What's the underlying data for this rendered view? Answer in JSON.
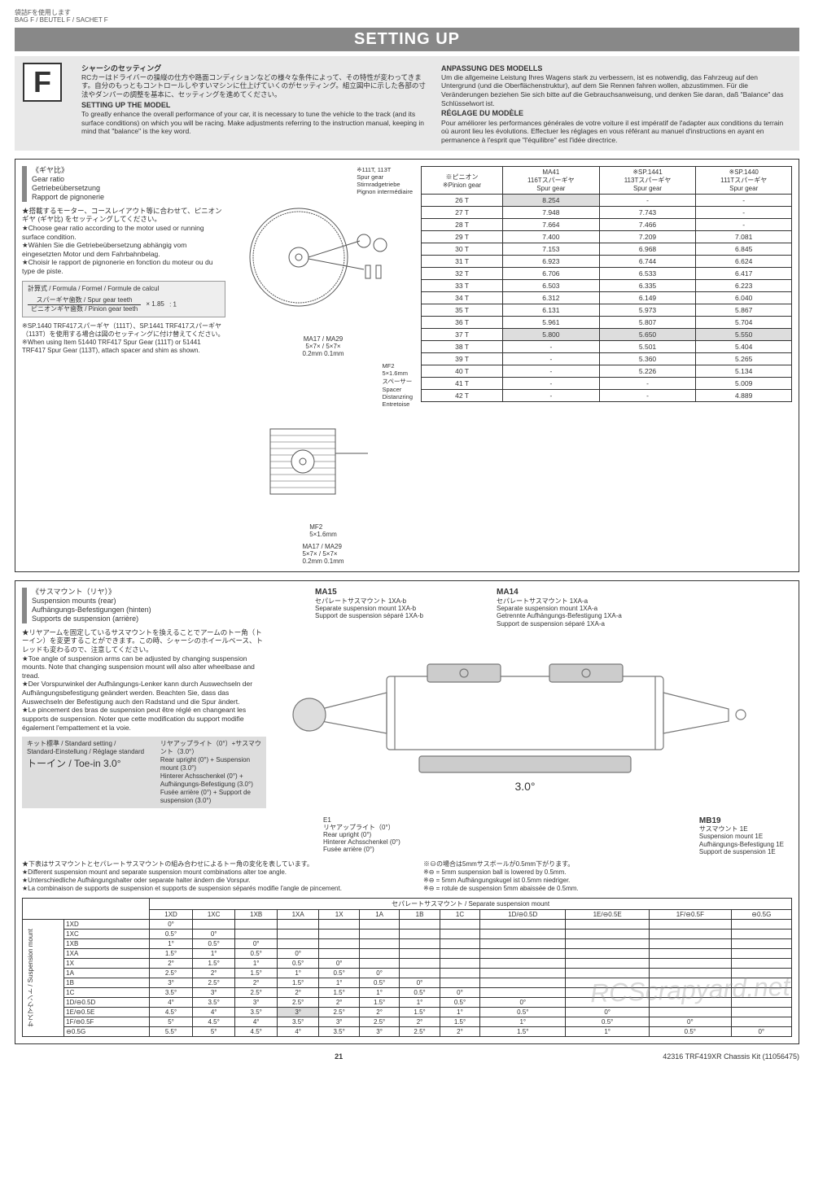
{
  "page": {
    "bag_jp": "袋詰Fを使用します",
    "bag_en": "BAG F / BEUTEL F / SACHET F",
    "title": "SETTING UP",
    "page_number": "21",
    "footer_right": "42316 TRF419XR Chassis Kit (11056475)",
    "watermark": "RCScrapyard.net"
  },
  "intro": {
    "f_label": "F",
    "jp_head": "シャーシのセッティング",
    "jp_body": "RCカーはドライバーの操縦の仕方や路面コンディションなどの様々な条件によって、その特性が変わってきます。自分のもっともコントロールしやすいマシンに仕上げていくのがセッティング。組立図中に示した各部の寸法やダンパーの調整を基本に、セッティングを進めてください。",
    "en_head": "SETTING UP THE MODEL",
    "en_body": "To greatly enhance the overall performance of your car, it is necessary to tune the vehicle to the track (and its surface conditions) on which you will be racing. Make adjustments referring to the instruction manual, keeping in mind that \"balance\" is the key word.",
    "de_head": "ANPASSUNG DES MODELLS",
    "de_body": "Um die allgemeine Leistung Ihres Wagens stark zu verbessern, ist es notwendig, das Fahrzeug auf den Untergrund (und die Oberflächenstruktur), auf dem Sie Rennen fahren wollen, abzustimmen. Für die Veränderungen beziehen Sie sich bitte auf die Gebrauchsanweisung, und denken Sie daran, daß \"Balance\" das Schlüsselwort ist.",
    "fr_head": "RÉGLAGE DU MODÈLE",
    "fr_body": "Pour améliorer les performances générales de votre voiture il est impératif de l'adapter aux conditions du terrain où auront lieu les évolutions. Effectuer les réglages en vous référant au manuel d'instructions en ayant en permanence à l'esprit que \"l'équilibre\" est l'idée directrice."
  },
  "gear": {
    "head_jp": "《ギヤ比》",
    "head_en": "Gear ratio",
    "head_de": "Getriebeübersetzung",
    "head_fr": "Rapport de pignonerie",
    "text_jp": "★搭載するモーター、コースレイアウト等に合わせて、ピニオンギヤ (ギヤ比) をセッティングしてください。",
    "text_en": "★Choose gear ratio according to the motor used or running surface condition.",
    "text_de": "★Wählen Sie die Getriebeübersetzung abhängig vom eingesetzten Motor und dem Fahrbahnbelag.",
    "text_fr": "★Choisir le rapport de pignonerie en fonction du moteur ou du type de piste.",
    "formula_head": "計算式 / Formula / Formel / Formule de calcul",
    "frac_num": "スパーギヤ歯数 / Spur gear teeth",
    "frac_den": "ピニオンギヤ歯数 / Pinion gear teeth",
    "frac_mult": "× 1.85",
    "frac_ratio": ": 1",
    "sp_note": "※SP.1440 TRF417スパーギヤ（111T）、SP.1441 TRF417スパーギヤ（113T）を使用する場合は図のセッティングに付け替えてください。\n※When using Item 51440 TRF417 Spur Gear (111T) or 51441 TRF417 Spur Gear (113T), attach spacer and shim as shown.",
    "label_111t": "※111T, 113T\nSpur gear\nStirnradgetriebe\nPignon intermédiaire",
    "label_ma17": "MA17 / MA29\n5×7× / 5×7×\n0.2mm   0.1mm",
    "label_mf2": "MF2\n5×1.6mm\nスペーサー\nSpacer\nDistanzring\nEntretoise",
    "label_mf2b": "MF2\n5×1.6mm",
    "table": {
      "h1": "※ピニオン\n※Pinion gear",
      "h2": "MA41\n116Tスパーギヤ\nSpur gear",
      "h3": "※SP.1441\n113Tスパーギヤ\nSpur gear",
      "h4": "※SP.1440\n111Tスパーギヤ\nSpur gear",
      "rows": [
        [
          "26 T",
          "8.254",
          "-",
          "-"
        ],
        [
          "27 T",
          "7.948",
          "7.743",
          "-"
        ],
        [
          "28 T",
          "7.664",
          "7.466",
          "-"
        ],
        [
          "29 T",
          "7.400",
          "7.209",
          "7.081"
        ],
        [
          "30 T",
          "7.153",
          "6.968",
          "6.845"
        ],
        [
          "31 T",
          "6.923",
          "6.744",
          "6.624"
        ],
        [
          "32 T",
          "6.706",
          "6.533",
          "6.417"
        ],
        [
          "33 T",
          "6.503",
          "6.335",
          "6.223"
        ],
        [
          "34 T",
          "6.312",
          "6.149",
          "6.040"
        ],
        [
          "35 T",
          "6.131",
          "5.973",
          "5.867"
        ],
        [
          "36 T",
          "5.961",
          "5.807",
          "5.704"
        ],
        [
          "37 T",
          "5.800",
          "5.650",
          "5.550"
        ],
        [
          "38 T",
          "-",
          "5.501",
          "5.404"
        ],
        [
          "39 T",
          "-",
          "5.360",
          "5.265"
        ],
        [
          "40 T",
          "-",
          "5.226",
          "5.134"
        ],
        [
          "41 T",
          "-",
          "-",
          "5.009"
        ],
        [
          "42 T",
          "-",
          "-",
          "4.889"
        ]
      ],
      "shaded": [
        "8.254",
        "5.800",
        "5.650",
        "5.550"
      ]
    }
  },
  "susp": {
    "head_jp": "《サスマウント（リヤ）》",
    "head_en": "Suspension mounts (rear)",
    "head_de": "Aufhängungs-Befestigungen (hinten)",
    "head_fr": "Supports de suspension (arrière)",
    "text_jp": "★リヤアームを固定しているサスマウントを換えることでアームのトー角（トーイン）を変更することができます。この時、シャーシのホイールベース、トレッドも変わるので、注意してください。",
    "text_en": "★Toe angle of suspension arms can be adjusted by changing suspension mounts. Note that changing suspension mount will also alter wheelbase and tread.",
    "text_de": "★Der Vorspurwinkel der Aufhängungs-Lenker kann durch Auswechseln der Aufhängungsbefestigung geändert werden. Beachten Sie, dass das Auswechseln der Befestigung auch den Radstand und die Spur ändert.",
    "text_fr": "★Le pincement des bras de suspension peut être réglé en changeant les supports de suspension. Noter que cette modification du support modifie également l'empattement et la voie.",
    "std_l1": "キット標準 / Standard setting / Standard-Einstellung / Réglage standard",
    "std_l2": "トーイン / Toe-in   3.0°",
    "std_r": "リヤアップライト（0°）+サスマウント（3.0°）\nRear upright (0°) + Suspension mount (3.0°)\nHinterer Achsschenkel (0°) + Aufhängungs-Befestigung (3.0°)\nFusée arrière (0°) + Support de suspension (3.0°)",
    "ma15": {
      "big": "MA15",
      "lines": "セパレートサスマウント 1XA-b\nSeparate suspension mount 1XA-b\nSupport de suspension séparé 1XA-b"
    },
    "ma14": {
      "big": "MA14",
      "lines": "セパレートサスマウント 1XA-a\nSeparate suspension mount 1XA-a\nGetrennte Aufhängungs-Befestigung 1XA-a\nSupport de suspension séparé 1XA-a"
    },
    "e1": "E1\nリヤアップライト（0°）\nRear upright (0°)\nHinterer Achsschenkel (0°)\nFusée arrière (0°)",
    "mb19": {
      "big": "MB19",
      "lines": "サスマウント 1E\nSuspension mount 1E\nAufhängungs-Befestigung 1E\nSupport de suspension 1E"
    },
    "angle": "3.0°",
    "note_jp": "★下表はサスマウントとセパレートサスマウントの組み合わせによるトー角の変化を表しています。",
    "note_en": "★Different suspension mount and separate suspension mount combinations alter toe angle.",
    "note_de": "★Unterschiedliche Aufhängungshalter oder separate halter ändern die Vorspur.",
    "note_fr": "★La combinaison de supports de suspension et supports de suspension séparés modifie l'angle de pincement.",
    "note2_jp": "※⊖の場合は5mmサスボールが0.5mm下がります。\n※⊖ = 5mm suspension ball is lowered by 0.5mm.\n※⊖ = 5mm Aufhängungskugel ist 0.5mm niedriger.\n※⊖ = rotule de suspension 5mm abaissée de 0.5mm."
  },
  "sep": {
    "title": "セパレートサスマウント / Separate suspension mount",
    "side": "サスマウント / Suspension mount",
    "cols": [
      "1XD",
      "1XC",
      "1XB",
      "1XA",
      "1X",
      "1A",
      "1B",
      "1C",
      "1D/⊖0.5D",
      "1E/⊖0.5E",
      "1F/⊖0.5F",
      "⊖0.5G"
    ],
    "rows": [
      {
        "h": "1XD",
        "c": [
          "0°",
          "",
          "",
          "",
          "",
          "",
          "",
          "",
          "",
          "",
          "",
          ""
        ]
      },
      {
        "h": "1XC",
        "c": [
          "0.5°",
          "0°",
          "",
          "",
          "",
          "",
          "",
          "",
          "",
          "",
          "",
          ""
        ]
      },
      {
        "h": "1XB",
        "c": [
          "1°",
          "0.5°",
          "0°",
          "",
          "",
          "",
          "",
          "",
          "",
          "",
          "",
          ""
        ]
      },
      {
        "h": "1XA",
        "c": [
          "1.5°",
          "1°",
          "0.5°",
          "0°",
          "",
          "",
          "",
          "",
          "",
          "",
          "",
          ""
        ]
      },
      {
        "h": "1X",
        "c": [
          "2°",
          "1.5°",
          "1°",
          "0.5°",
          "0°",
          "",
          "",
          "",
          "",
          "",
          "",
          ""
        ]
      },
      {
        "h": "1A",
        "c": [
          "2.5°",
          "2°",
          "1.5°",
          "1°",
          "0.5°",
          "0°",
          "",
          "",
          "",
          "",
          "",
          ""
        ]
      },
      {
        "h": "1B",
        "c": [
          "3°",
          "2.5°",
          "2°",
          "1.5°",
          "1°",
          "0.5°",
          "0°",
          "",
          "",
          "",
          "",
          ""
        ]
      },
      {
        "h": "1C",
        "c": [
          "3.5°",
          "3°",
          "2.5°",
          "2°",
          "1.5°",
          "1°",
          "0.5°",
          "0°",
          "",
          "",
          "",
          ""
        ]
      },
      {
        "h": "1D/⊖0.5D",
        "c": [
          "4°",
          "3.5°",
          "3°",
          "2.5°",
          "2°",
          "1.5°",
          "1°",
          "0.5°",
          "0°",
          "",
          "",
          ""
        ]
      },
      {
        "h": "1E/⊖0.5E",
        "c": [
          "4.5°",
          "4°",
          "3.5°",
          "3°",
          "2.5°",
          "2°",
          "1.5°",
          "1°",
          "0.5°",
          "0°",
          "",
          ""
        ]
      },
      {
        "h": "1F/⊖0.5F",
        "c": [
          "5°",
          "4.5°",
          "4°",
          "3.5°",
          "3°",
          "2.5°",
          "2°",
          "1.5°",
          "1°",
          "0.5°",
          "0°",
          ""
        ]
      },
      {
        "h": "⊖0.5G",
        "c": [
          "5.5°",
          "5°",
          "4.5°",
          "4°",
          "3.5°",
          "3°",
          "2.5°",
          "2°",
          "1.5°",
          "1°",
          "0.5°",
          "0°"
        ]
      }
    ],
    "shaded_row": 9,
    "shaded_col": 3
  }
}
